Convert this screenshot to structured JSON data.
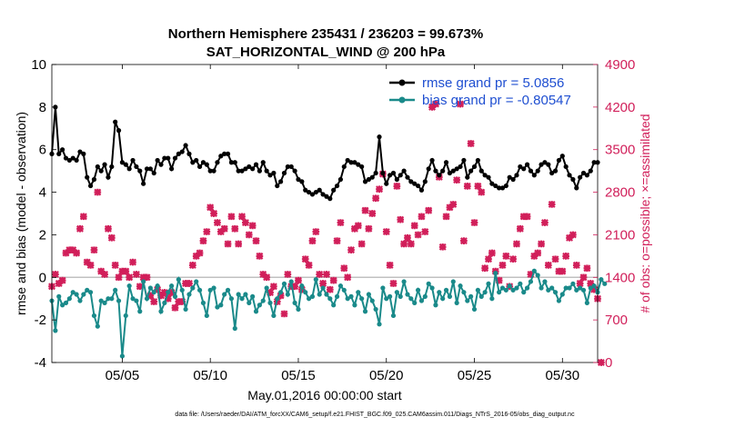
{
  "chart_data": {
    "type": "line",
    "title": "Northern Hemisphere 235431 / 236203 = 99.673%",
    "subtitle": "SAT_HORIZONTAL_WIND @ 200 hPa",
    "xlabel": "May.01,2016 00:00:00 start",
    "ylabel_left": "rmse and bias (model - observation)",
    "ylabel_right": "# of obs: o=possible; ×=assimilated",
    "footnote": "data file: /Users/raeder/DAI/ATM_forcXX/CAM6_setup/f.e21.FHIST_BGC.f09_025.CAM6assim.011/Diags_NTrS_2016-05/obs_diag_output.nc",
    "x_ticks": [
      {
        "v": 5,
        "label": "05/05"
      },
      {
        "v": 10,
        "label": "05/10"
      },
      {
        "v": 15,
        "label": "05/15"
      },
      {
        "v": 20,
        "label": "05/20"
      },
      {
        "v": 25,
        "label": "05/25"
      },
      {
        "v": 30,
        "label": "05/30"
      }
    ],
    "xlim": [
      1,
      32
    ],
    "ylim_left": [
      -4,
      10
    ],
    "ylim_right": [
      0,
      4900
    ],
    "yticks_left": [
      "-4",
      "-2",
      "0",
      "2",
      "4",
      "6",
      "8",
      "10"
    ],
    "yticks_right": [
      "0",
      "700",
      "1400",
      "2100",
      "2800",
      "3500",
      "4200",
      "4900"
    ],
    "zero_line": 0,
    "legend_position": "top-right",
    "colors": {
      "rmse": "#000000",
      "bias": "#1a8a8a",
      "obs": "#d11f5a",
      "zero": "#c0c0c0",
      "legend_text": "#1f4fd1"
    },
    "series": [
      {
        "name": "rmse grand pr = 5.0856",
        "axis": "left",
        "key": "rmse",
        "values": [
          5.8,
          8.0,
          5.8,
          6.0,
          5.6,
          5.5,
          5.6,
          5.5,
          5.9,
          5.8,
          4.7,
          4.3,
          4.6,
          5.2,
          5.0,
          5.3,
          4.7,
          5.2,
          7.3,
          6.9,
          5.4,
          5.3,
          5.1,
          5.5,
          5.2,
          5.0,
          4.4,
          5.1,
          5.1,
          4.9,
          5.5,
          5.3,
          5.6,
          5.6,
          5.1,
          5.6,
          5.8,
          5.9,
          6.2,
          5.8,
          5.4,
          5.5,
          5.2,
          5.4,
          5.3,
          5.0,
          5.0,
          5.4,
          5.7,
          5.8,
          5.8,
          5.4,
          5.4,
          5.0,
          5.0,
          5.1,
          5.2,
          5.1,
          5.3,
          5.0,
          5.4,
          5.0,
          4.8,
          4.9,
          4.3,
          4.5,
          4.9,
          5.2,
          5.2,
          5.0,
          4.6,
          4.5,
          4.1,
          4.0,
          3.9,
          4.0,
          4.1,
          3.9,
          3.8,
          3.7,
          4.1,
          4.3,
          4.6,
          5.2,
          5.5,
          5.4,
          5.4,
          5.3,
          5.2,
          4.5,
          4.6,
          4.7,
          4.9,
          6.6,
          4.9,
          4.4,
          4.8,
          4.9,
          4.6,
          4.8,
          5.0,
          4.7,
          4.5,
          4.4,
          4.3,
          4.1,
          4.5,
          5.1,
          5.5,
          5.0,
          4.8,
          5.0,
          5.4,
          4.9,
          5.0,
          5.1,
          5.2,
          5.5,
          4.7,
          5.0,
          5.2,
          5.5,
          5.0,
          4.8,
          4.7,
          4.4,
          4.3,
          4.2,
          4.2,
          4.3,
          4.7,
          4.6,
          4.8,
          5.2,
          5.1,
          5.3,
          5.0,
          4.8,
          5.0,
          5.3,
          5.4,
          5.3,
          4.9,
          5.0,
          5.5,
          5.7,
          5.2,
          4.8,
          4.6,
          4.2,
          4.7,
          4.9,
          4.8,
          5.0,
          5.4,
          5.4
        ]
      },
      {
        "name": "bias grand pr = -0.80547",
        "axis": "left",
        "key": "bias",
        "values": [
          -1.1,
          -2.5,
          -0.9,
          -1.3,
          -1.2,
          -1.0,
          -0.7,
          -0.8,
          -1.1,
          -0.8,
          -0.6,
          -0.7,
          -1.8,
          -2.3,
          -1.1,
          -1.2,
          -1.0,
          -1.0,
          -0.6,
          -1.1,
          -3.7,
          -1.8,
          -0.4,
          -1.0,
          -1.1,
          -1.6,
          -0.2,
          -1.0,
          -0.5,
          -0.7,
          -0.4,
          -1.6,
          -1.2,
          -0.7,
          -0.4,
          -0.9,
          -0.1,
          -0.6,
          -1.5,
          -0.8,
          -0.5,
          -0.2,
          -0.6,
          -1.2,
          -1.8,
          -0.6,
          -0.5,
          -1.4,
          -1.3,
          -0.8,
          -0.6,
          -1.0,
          -2.4,
          -0.8,
          -1.0,
          -0.8,
          -1.2,
          -0.9,
          -1.6,
          -1.3,
          -1.1,
          -0.5,
          -1.2,
          -1.8,
          -1.0,
          -0.7,
          -0.3,
          -0.8,
          -0.2,
          -1.2,
          -1.5,
          -0.4,
          -0.7,
          -1.0,
          -0.9,
          -0.1,
          -0.8,
          -0.5,
          -0.8,
          -1.0,
          -1.3,
          -0.9,
          -0.4,
          -0.6,
          -1.0,
          -0.9,
          -1.3,
          -0.7,
          -1.0,
          -1.6,
          -0.8,
          -1.1,
          -1.5,
          -2.2,
          -0.5,
          -1.0,
          -0.9,
          -1.8,
          -0.7,
          -0.9,
          -0.2,
          -0.8,
          -1.0,
          -1.2,
          -0.6,
          -1.1,
          -0.9,
          -0.3,
          -0.5,
          -1.3,
          -0.7,
          -1.0,
          -0.6,
          -0.9,
          -0.2,
          -1.2,
          -0.4,
          -0.7,
          -1.1,
          -0.9,
          -1.5,
          -0.6,
          -0.9,
          -0.7,
          -0.3,
          -1.0,
          0.2,
          -0.7,
          -0.5,
          -0.6,
          -0.4,
          -0.6,
          -0.5,
          -0.3,
          -0.7,
          -0.5,
          -0.2,
          0.3,
          0.1,
          -0.5,
          -0.2,
          -0.6,
          -0.5,
          -0.7,
          -1.1,
          -0.8,
          -0.5,
          -0.5,
          -0.3,
          -0.6,
          -0.5,
          -0.6,
          -1.2,
          -0.5,
          -0.4,
          -0.7,
          -0.1,
          -0.3
        ]
      },
      {
        "name": "obs assimilated",
        "axis": "right",
        "key": "obs",
        "values": [
          1250,
          1450,
          1300,
          1350,
          1800,
          1850,
          1850,
          1800,
          2200,
          2400,
          1650,
          1600,
          1850,
          2800,
          1500,
          1450,
          2200,
          2050,
          1600,
          1400,
          1500,
          1500,
          1400,
          1650,
          1450,
          1250,
          1400,
          1400,
          1100,
          1000,
          1200,
          1100,
          1150,
          1050,
          1150,
          900,
          1000,
          1000,
          1300,
          1300,
          1600,
          1750,
          1800,
          2000,
          2150,
          2550,
          2450,
          2300,
          2150,
          2200,
          1950,
          2400,
          2200,
          1950,
          2400,
          2300,
          2100,
          2250,
          2000,
          1750,
          1450,
          1400,
          1150,
          1250,
          1000,
          1100,
          800,
          1450,
          1250,
          1250,
          1350,
          1200,
          1700,
          1600,
          2000,
          2150,
          1450,
          1300,
          1450,
          1200,
          1350,
          2000,
          2300,
          1550,
          1400,
          1850,
          2200,
          2250,
          1950,
          2500,
          2200,
          2450,
          2700,
          2850,
          3100,
          2150,
          1600,
          1300,
          2900,
          2350,
          1950,
          2050,
          1950,
          2250,
          2100,
          2400,
          2150,
          2500,
          4200,
          4250,
          3050,
          1900,
          2400,
          2550,
          2600,
          3000,
          4250,
          2000,
          2900,
          3600,
          2300,
          2900,
          2800,
          1550,
          1700,
          1800,
          1500,
          1350,
          1600,
          1750,
          1250,
          1700,
          1950,
          2200,
          2400,
          2400,
          1450,
          1750,
          1800,
          1950,
          2300,
          1600,
          2600,
          1700,
          1500,
          1500,
          1750,
          2050,
          2100,
          1600,
          1300,
          1400,
          1550,
          1300,
          1200,
          1050,
          0
        ]
      }
    ]
  }
}
